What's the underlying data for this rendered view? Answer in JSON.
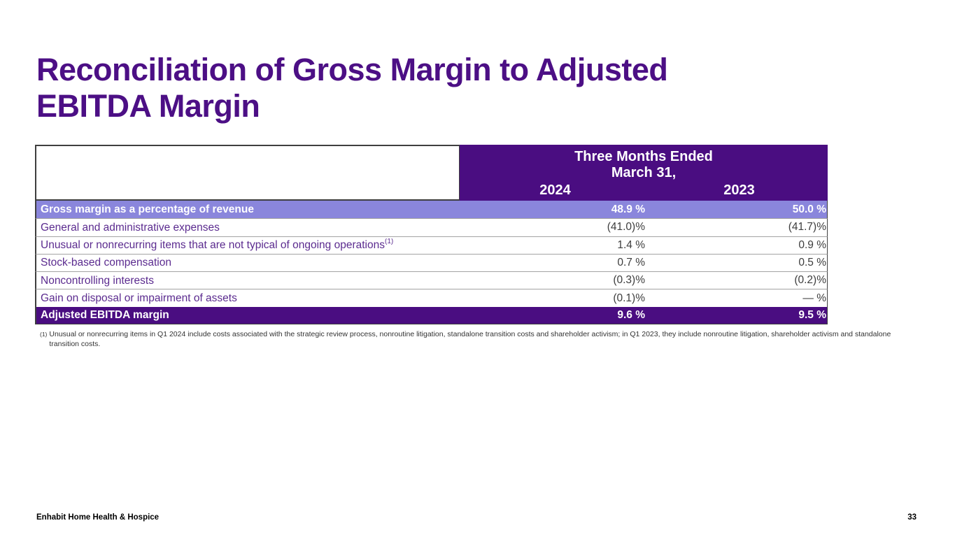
{
  "slide": {
    "title_line1": "Reconciliation of Gross Margin to Adjusted",
    "title_line2": "EBITDA Margin",
    "footer_brand": "Enhabit Home Health & Hospice",
    "page_number": "33"
  },
  "table": {
    "header": {
      "group_title_line1": "Three Months Ended",
      "group_title_line2": "March 31,",
      "col_2024": "2024",
      "col_2023": "2023"
    },
    "rows": [
      {
        "label": "Gross margin as a percentage of revenue",
        "sup": "",
        "v2024": "48.9 %",
        "v2023": "50.0 %"
      },
      {
        "label": "General and administrative expenses",
        "sup": "",
        "v2024": "(41.0)%",
        "v2023": "(41.7)%"
      },
      {
        "label": "Unusual or nonrecurring items that are not typical of ongoing operations",
        "sup": "(1)",
        "v2024": "1.4 %",
        "v2023": "0.9 %"
      },
      {
        "label": "Stock-based compensation",
        "sup": "",
        "v2024": "0.7 %",
        "v2023": "0.5 %"
      },
      {
        "label": "Noncontrolling interests",
        "sup": "",
        "v2024": "(0.3)%",
        "v2023": "(0.2)%"
      },
      {
        "label": "Gain on disposal or impairment of assets",
        "sup": "",
        "v2024": "(0.1)%",
        "v2023": "— %"
      },
      {
        "label": "Adjusted EBITDA margin",
        "sup": "",
        "v2024": "9.6 %",
        "v2023": "9.5 %"
      }
    ]
  },
  "footnote": {
    "marker": "(1)",
    "text": "Unusual or nonrecurring items in Q1 2024 include costs associated with the strategic review process, nonroutine litigation, standalone transition costs and shareholder activism; in Q1 2023, they include nonroutine litigation, shareholder activism and standalone transition costs."
  },
  "colors": {
    "brand_dark_purple": "#4a0d81",
    "brand_light_purple": "#8a86dc",
    "title_purple": "#4c0f85",
    "row_label_purple": "#5b2b8f",
    "value_text": "#3d3d3d"
  }
}
